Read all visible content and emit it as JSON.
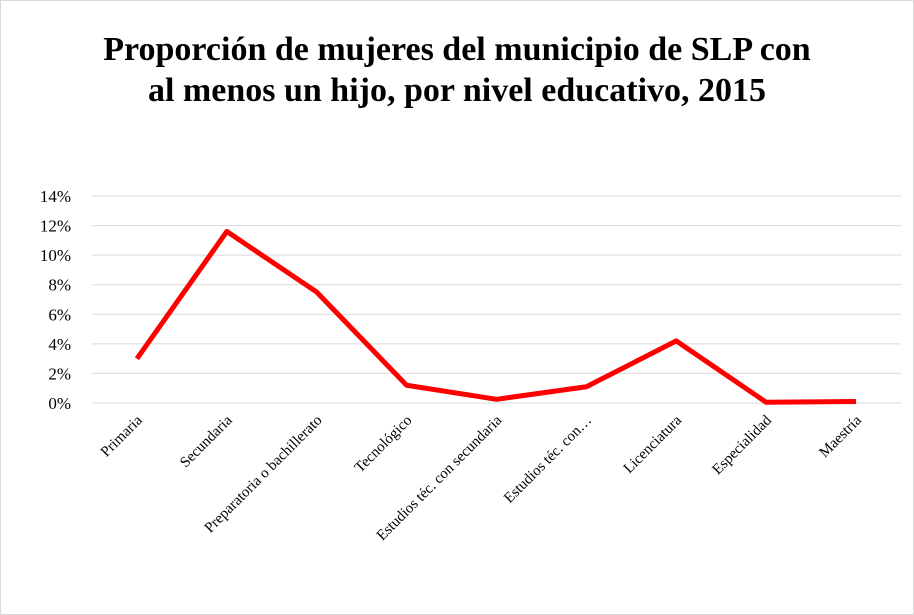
{
  "chart_data": {
    "type": "line",
    "title": "Proporción de mujeres del municipio de SLP con al menos un hijo, por nivel educativo, 2015",
    "categories": [
      "Primaria",
      "Secundaria",
      "Preparatoria o bachillerato",
      "Tecnológico",
      "Estudios téc. con secundaria",
      "Estudios téc.  con…",
      "Licenciatura",
      "Especialidad",
      "Maestría"
    ],
    "series": [
      {
        "name": "Proporción",
        "color": "#ff0000",
        "values": [
          3.0,
          11.6,
          7.5,
          1.2,
          0.25,
          1.1,
          4.2,
          0.05,
          0.1
        ]
      }
    ],
    "ylim": [
      0,
      14
    ],
    "yticks": [
      {
        "value": 0,
        "label": "0%"
      },
      {
        "value": 2,
        "label": "2%"
      },
      {
        "value": 4,
        "label": "4%"
      },
      {
        "value": 6,
        "label": "6%"
      },
      {
        "value": 8,
        "label": "8%"
      },
      {
        "value": 10,
        "label": "10%"
      },
      {
        "value": 12,
        "label": "12%"
      },
      {
        "value": 14,
        "label": "14%"
      }
    ],
    "grid": true
  }
}
